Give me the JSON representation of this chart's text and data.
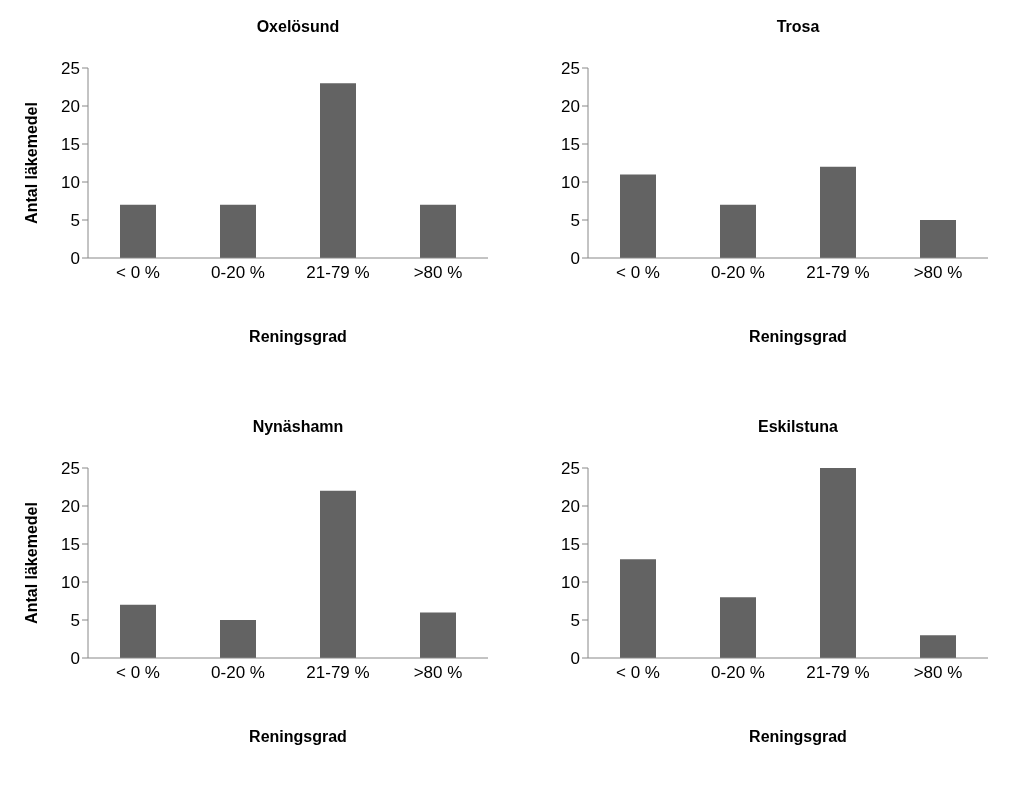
{
  "chart_data": [
    {
      "type": "bar",
      "title": "Oxelösund",
      "xlabel": "Reningsgrad",
      "ylabel": "Antal läkemedel",
      "categories": [
        "< 0 %",
        "0-20 %",
        "21-79 %",
        ">80 %"
      ],
      "values": [
        7,
        7,
        23,
        7
      ],
      "color": "#636363",
      "ylim": [
        0,
        25
      ],
      "yticks": [
        0,
        5,
        10,
        15,
        20,
        25
      ]
    },
    {
      "type": "bar",
      "title": "Trosa",
      "xlabel": "Reningsgrad",
      "categories": [
        "< 0 %",
        "0-20 %",
        "21-79 %",
        ">80 %"
      ],
      "values": [
        11,
        7,
        12,
        5
      ],
      "color": "#636363",
      "ylim": [
        0,
        25
      ],
      "yticks": [
        0,
        5,
        10,
        15,
        20,
        25
      ]
    },
    {
      "type": "bar",
      "title": "Nynäshamn",
      "xlabel": "Reningsgrad",
      "ylabel": "Antal läkemedel",
      "categories": [
        "< 0 %",
        "0-20 %",
        "21-79 %",
        ">80 %"
      ],
      "values": [
        7,
        5,
        22,
        6
      ],
      "color": "#636363",
      "ylim": [
        0,
        25
      ],
      "yticks": [
        0,
        5,
        10,
        15,
        20,
        25
      ]
    },
    {
      "type": "bar",
      "title": "Eskilstuna",
      "xlabel": "Reningsgrad",
      "categories": [
        "< 0 %",
        "0-20 %",
        "21-79 %",
        ">80 %"
      ],
      "values": [
        13,
        8,
        25,
        3
      ],
      "color": "#636363",
      "ylim": [
        0,
        25
      ],
      "yticks": [
        0,
        5,
        10,
        15,
        20,
        25
      ]
    }
  ]
}
